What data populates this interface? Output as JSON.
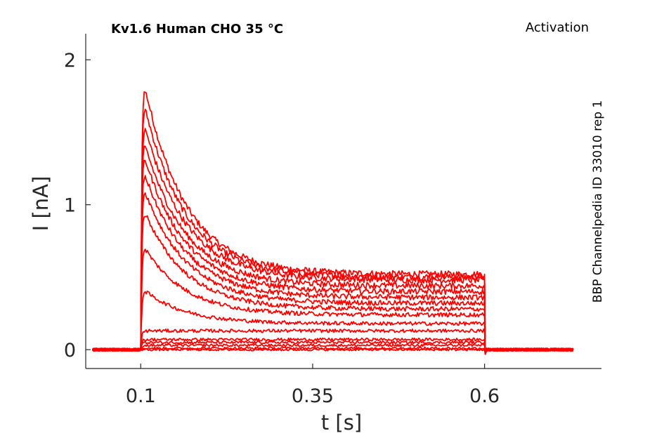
{
  "chart_data": {
    "type": "line",
    "title": "Kv1.6  Human  CHO  35 °C",
    "protocol_label": "Activation",
    "side_label": "BBP Channelpedia ID 33010 rep 1",
    "xlabel": "t [s]",
    "ylabel": "I [nA]",
    "xlim": [
      0.02,
      0.77
    ],
    "ylim": [
      -0.13,
      2.18
    ],
    "x_ticks": [
      0.1,
      0.35,
      0.6
    ],
    "x_tick_labels": [
      "0.1",
      "0.35",
      "0.6"
    ],
    "y_ticks": [
      0,
      1,
      2
    ],
    "y_tick_labels": [
      "0",
      "1",
      "2"
    ],
    "pulse_start_s": 0.1,
    "pulse_end_s": 0.6,
    "trace_start_s": 0.03,
    "trace_end_s": 0.73,
    "line_color": "#ff0000",
    "grid": false,
    "legend": "none",
    "series": [
      {
        "peak": 1.95,
        "end": 0.52
      },
      {
        "peak": 1.8,
        "end": 0.5
      },
      {
        "peak": 1.65,
        "end": 0.48
      },
      {
        "peak": 1.52,
        "end": 0.44
      },
      {
        "peak": 1.42,
        "end": 0.4
      },
      {
        "peak": 1.3,
        "end": 0.36
      },
      {
        "peak": 1.18,
        "end": 0.32
      },
      {
        "peak": 1.02,
        "end": 0.28
      },
      {
        "peak": 0.75,
        "end": 0.24
      },
      {
        "peak": 0.43,
        "end": 0.18
      },
      {
        "peak": 0.12,
        "end": 0.13
      },
      {
        "peak": 0.06,
        "end": 0.07
      },
      {
        "peak": 0.04,
        "end": 0.05
      },
      {
        "peak": 0.02,
        "end": 0.03
      },
      {
        "peak": 0.01,
        "end": 0.01
      },
      {
        "peak": 0.0,
        "end": 0.0
      }
    ]
  }
}
